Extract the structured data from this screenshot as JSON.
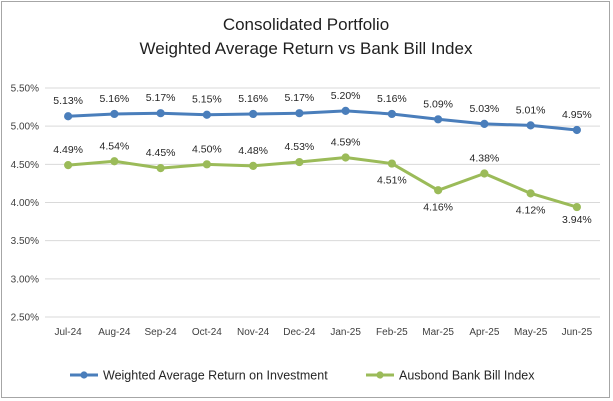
{
  "chart_data": {
    "type": "line",
    "title": "Consolidated Portfolio",
    "subtitle": "Weighted Average Return vs Bank Bill Index",
    "categories": [
      "Jul-24",
      "Aug-24",
      "Sep-24",
      "Oct-24",
      "Nov-24",
      "Dec-24",
      "Jan-25",
      "Feb-25",
      "Mar-25",
      "Apr-25",
      "May-25",
      "Jun-25"
    ],
    "ylim": [
      2.5,
      5.5
    ],
    "yticks": [
      2.5,
      3.0,
      3.5,
      4.0,
      4.5,
      5.0,
      5.5
    ],
    "ytick_labels": [
      "2.50%",
      "3.00%",
      "3.50%",
      "4.00%",
      "4.50%",
      "5.00%",
      "5.50%"
    ],
    "grid": true,
    "legend_position": "bottom",
    "series": [
      {
        "name": "Weighted Average Return on Investment",
        "color": "#4a7ebb",
        "values": [
          5.13,
          5.16,
          5.17,
          5.15,
          5.16,
          5.17,
          5.2,
          5.16,
          5.09,
          5.03,
          5.01,
          4.95
        ],
        "labels": [
          "5.13%",
          "5.16%",
          "5.17%",
          "5.15%",
          "5.16%",
          "5.17%",
          "5.20%",
          "5.16%",
          "5.09%",
          "5.03%",
          "5.01%",
          "4.95%"
        ]
      },
      {
        "name": "Ausbond Bank Bill Index",
        "color": "#9bbb59",
        "values": [
          4.49,
          4.54,
          4.45,
          4.5,
          4.48,
          4.53,
          4.59,
          4.51,
          4.16,
          4.38,
          4.12,
          3.94
        ],
        "labels": [
          "4.49%",
          "4.54%",
          "4.45%",
          "4.50%",
          "4.48%",
          "4.53%",
          "4.59%",
          "4.51%",
          "4.16%",
          "4.38%",
          "4.12%",
          "3.94%"
        ]
      }
    ]
  }
}
